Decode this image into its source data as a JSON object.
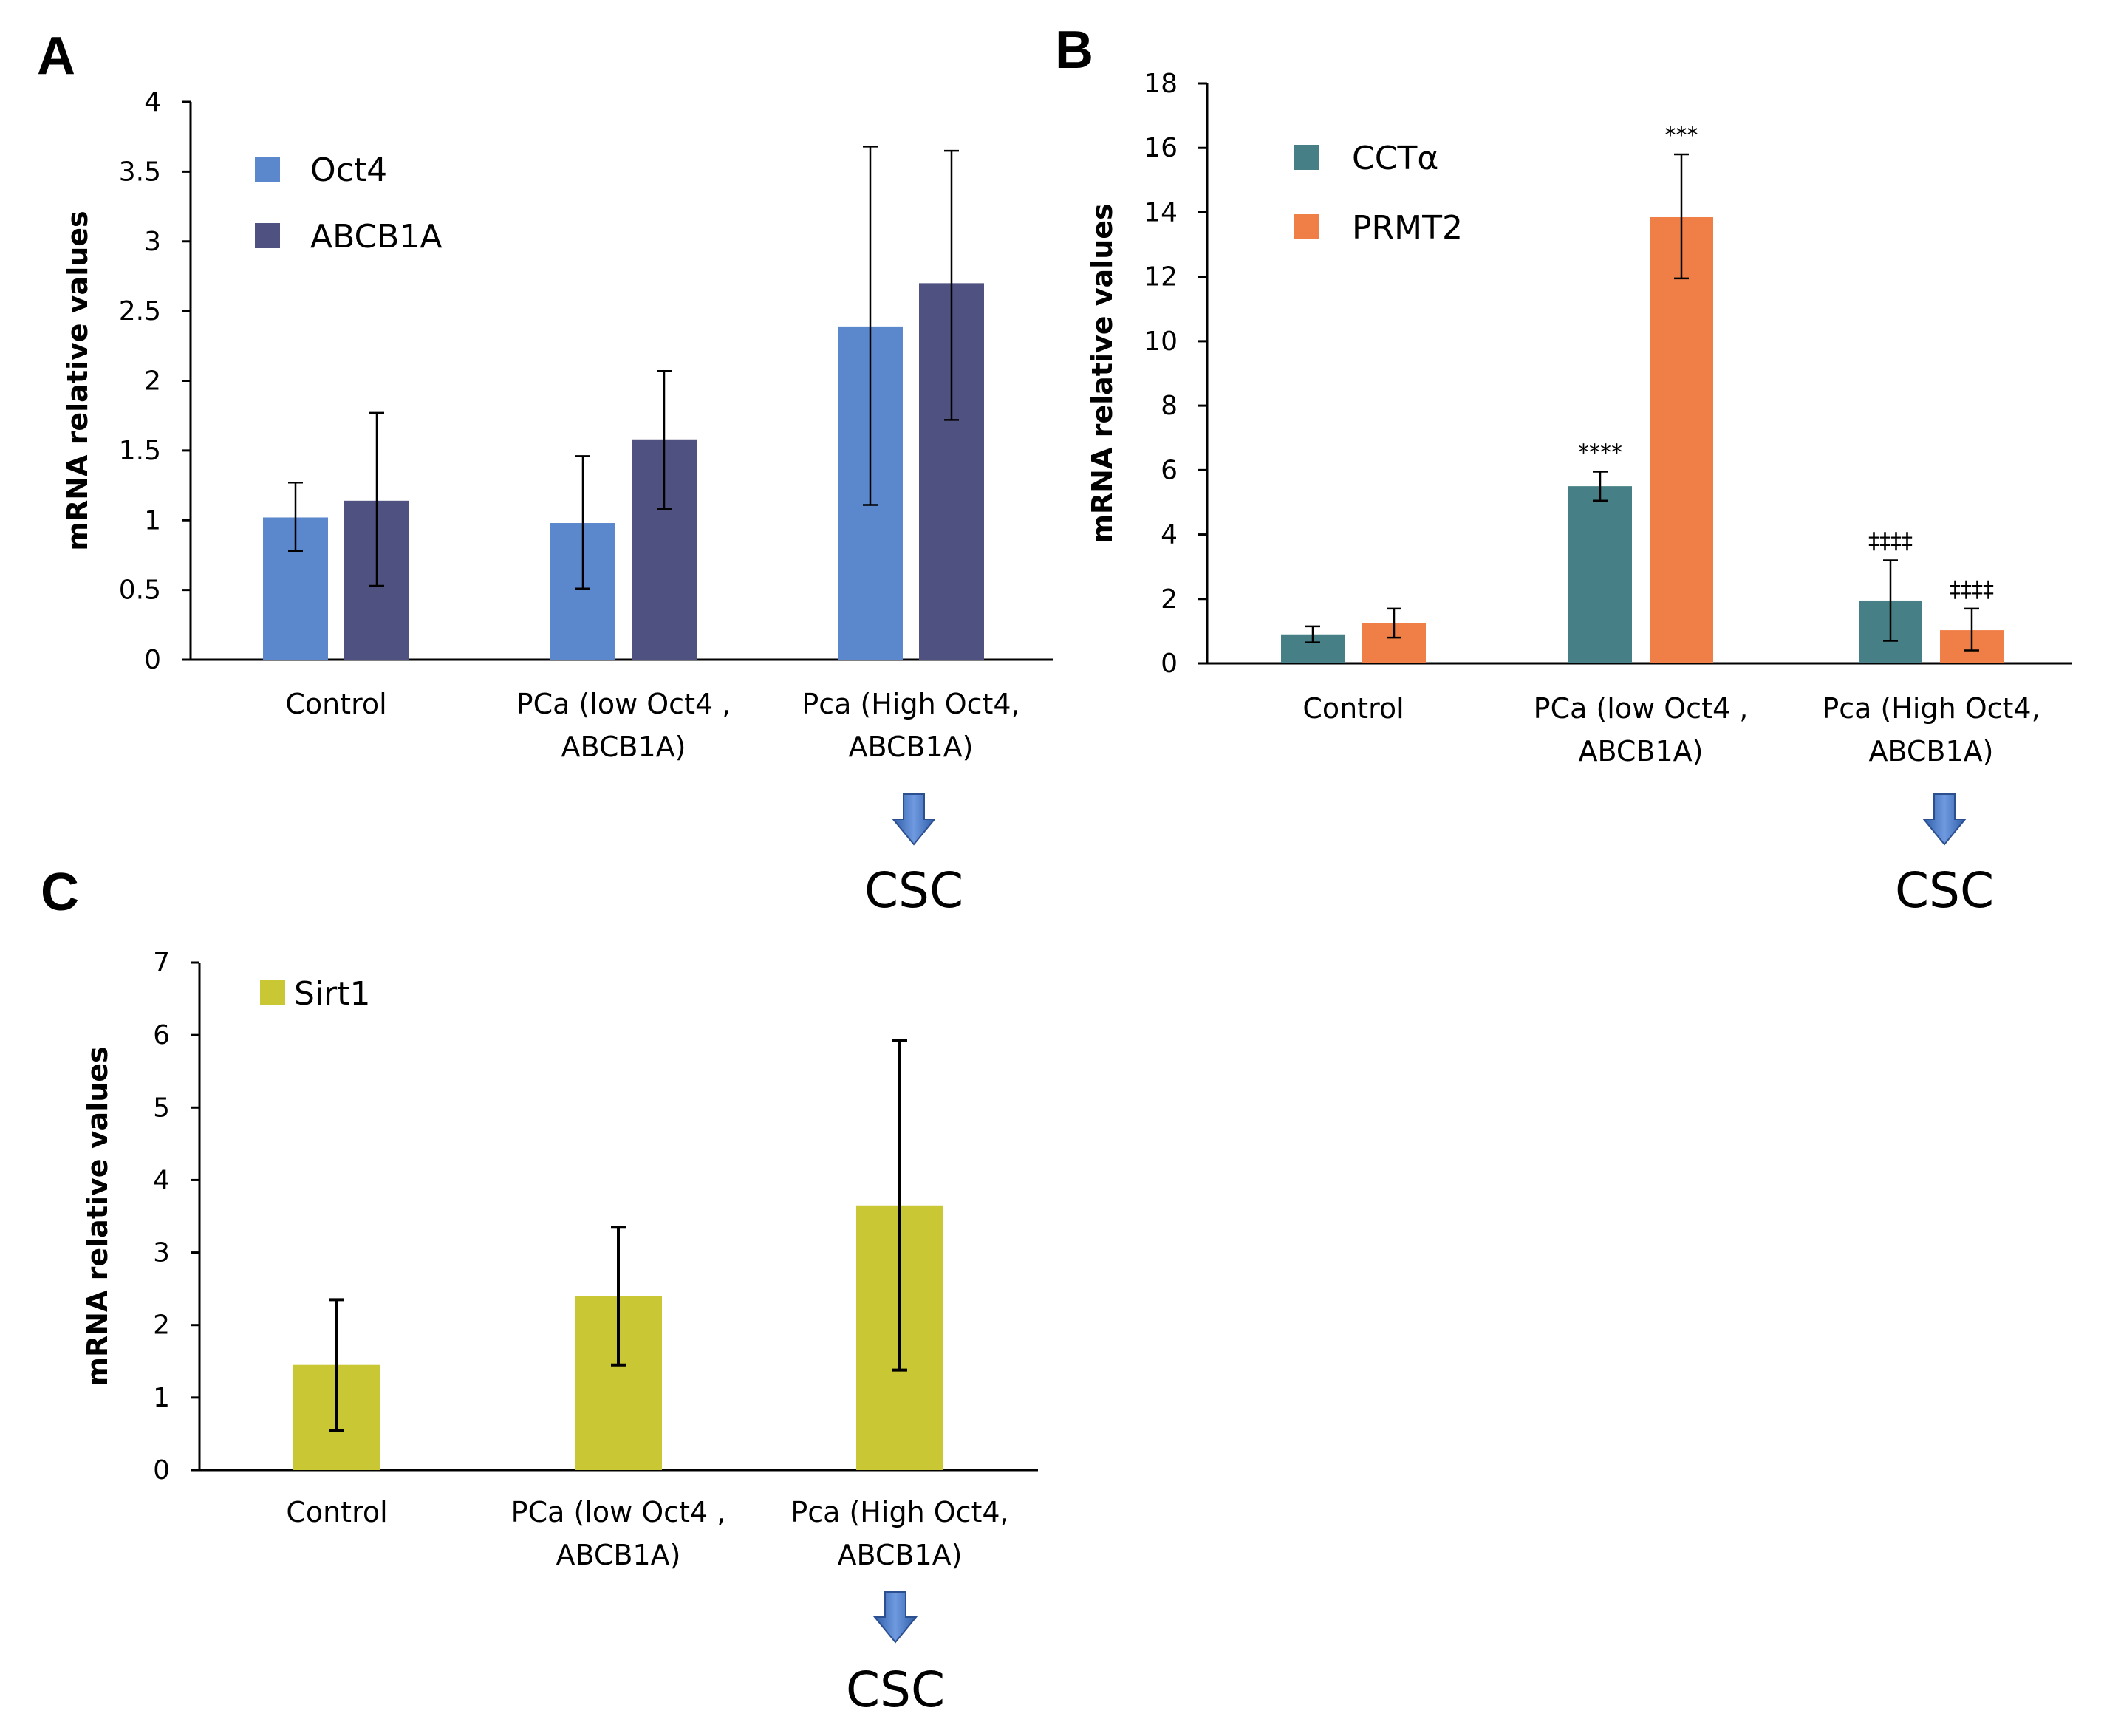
{
  "colors": {
    "oct4": "#5b87cc",
    "abcb1a": "#4f5280",
    "ccta": "#468086",
    "prmt2": "#f07f47",
    "sirt1": "#c9c733",
    "arrow": "#4573c4",
    "axis": "#000000"
  },
  "chart_data": [
    {
      "panel": "A",
      "type": "bar",
      "ylabel": "mRNA relative values",
      "ylim": [
        0,
        4
      ],
      "yticks": [
        "0",
        "0.5",
        "1",
        "1.5",
        "2",
        "2.5",
        "3",
        "3.5",
        "4"
      ],
      "categories": [
        [
          "Control"
        ],
        [
          "PCa (low Oct4 ,",
          "ABCB1A)"
        ],
        [
          "Pca (High Oct4,",
          "ABCB1A)"
        ]
      ],
      "series": [
        {
          "name": "Oct4",
          "color_key": "oct4",
          "values": [
            1.02,
            0.98,
            2.39
          ],
          "err_low": [
            0.78,
            0.51,
            1.11
          ],
          "err_high": [
            1.27,
            1.46,
            3.68
          ]
        },
        {
          "name": "ABCB1A",
          "color_key": "abcb1a",
          "values": [
            1.14,
            1.58,
            2.7
          ],
          "err_low": [
            0.53,
            1.08,
            1.72
          ],
          "err_high": [
            1.77,
            2.07,
            3.65
          ]
        }
      ],
      "annotations": [],
      "csc_label": "CSC"
    },
    {
      "panel": "B",
      "type": "bar",
      "ylabel": "mRNA relative values",
      "ylim": [
        0,
        18
      ],
      "yticks": [
        "0",
        "2",
        "4",
        "6",
        "8",
        "10",
        "12",
        "14",
        "16",
        "18"
      ],
      "categories": [
        [
          "Control"
        ],
        [
          "PCa (low Oct4 ,",
          "ABCB1A)"
        ],
        [
          "Pca (High Oct4,",
          "ABCB1A)"
        ]
      ],
      "series": [
        {
          "name": "CCTα",
          "color_key": "ccta",
          "values": [
            0.9,
            5.5,
            1.95
          ],
          "err_low": [
            0.65,
            5.05,
            0.7
          ],
          "err_high": [
            1.15,
            5.95,
            3.2
          ]
        },
        {
          "name": "PRMT2",
          "color_key": "prmt2",
          "values": [
            1.25,
            13.85,
            1.03
          ],
          "err_low": [
            0.8,
            11.95,
            0.4
          ],
          "err_high": [
            1.7,
            15.8,
            1.7
          ]
        }
      ],
      "annotations": [
        {
          "series": 0,
          "category": 1,
          "text": "****"
        },
        {
          "series": 1,
          "category": 1,
          "text": "***"
        },
        {
          "series": 0,
          "category": 2,
          "text": "‡‡‡‡"
        },
        {
          "series": 1,
          "category": 2,
          "text": "‡‡‡‡"
        }
      ],
      "csc_label": "CSC"
    },
    {
      "panel": "C",
      "type": "bar",
      "ylabel": "mRNA relative values",
      "ylim": [
        0,
        7
      ],
      "yticks": [
        "0",
        "1",
        "2",
        "3",
        "4",
        "5",
        "6",
        "7"
      ],
      "categories": [
        [
          "Control"
        ],
        [
          "PCa (low Oct4 ,",
          "ABCB1A)"
        ],
        [
          "Pca (High Oct4,",
          "ABCB1A)"
        ]
      ],
      "series": [
        {
          "name": "Sirt1",
          "color_key": "sirt1",
          "values": [
            1.45,
            2.4,
            3.65
          ],
          "err_low": [
            0.55,
            1.45,
            1.38
          ],
          "err_high": [
            2.35,
            3.35,
            5.92
          ]
        }
      ],
      "annotations": [],
      "csc_label": "CSC"
    }
  ]
}
